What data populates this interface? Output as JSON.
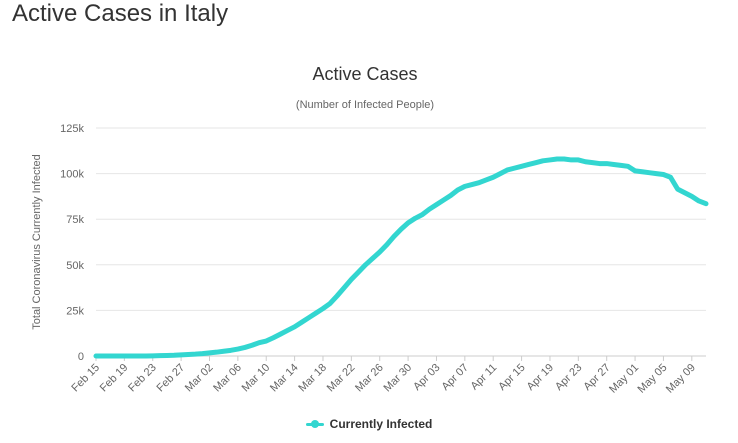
{
  "page": {
    "heading": "Active Cases in Italy"
  },
  "colors": {
    "series": "#33D6D0",
    "grid": "#E6E6E6",
    "axis_text": "#666666",
    "title": "#333333"
  },
  "legend": {
    "label": "Currently Infected",
    "placement": "bottom-center"
  },
  "chart_data": {
    "type": "line",
    "title": "Active Cases",
    "subtitle": "(Number of Infected People)",
    "xlabel": "",
    "ylabel": "Total Coronavirus Currently Infected",
    "ylim": [
      0,
      125000
    ],
    "y_ticks": [
      {
        "value": 0,
        "label": "0"
      },
      {
        "value": 25000,
        "label": "25k"
      },
      {
        "value": 50000,
        "label": "50k"
      },
      {
        "value": 75000,
        "label": "75k"
      },
      {
        "value": 100000,
        "label": "100k"
      },
      {
        "value": 125000,
        "label": "125k"
      }
    ],
    "x_tick_labels": [
      "Feb 15",
      "Feb 19",
      "Feb 23",
      "Feb 27",
      "Mar 02",
      "Mar 06",
      "Mar 10",
      "Mar 14",
      "Mar 18",
      "Mar 22",
      "Mar 26",
      "Mar 30",
      "Apr 03",
      "Apr 07",
      "Apr 11",
      "Apr 15",
      "Apr 19",
      "Apr 23",
      "Apr 27",
      "May 01",
      "May 05",
      "May 09"
    ],
    "grid": true,
    "categories": [
      "Feb 15",
      "Feb 16",
      "Feb 17",
      "Feb 18",
      "Feb 19",
      "Feb 20",
      "Feb 21",
      "Feb 22",
      "Feb 23",
      "Feb 24",
      "Feb 25",
      "Feb 26",
      "Feb 27",
      "Feb 28",
      "Feb 29",
      "Mar 01",
      "Mar 02",
      "Mar 03",
      "Mar 04",
      "Mar 05",
      "Mar 06",
      "Mar 07",
      "Mar 08",
      "Mar 09",
      "Mar 10",
      "Mar 11",
      "Mar 12",
      "Mar 13",
      "Mar 14",
      "Mar 15",
      "Mar 16",
      "Mar 17",
      "Mar 18",
      "Mar 19",
      "Mar 20",
      "Mar 21",
      "Mar 22",
      "Mar 23",
      "Mar 24",
      "Mar 25",
      "Mar 26",
      "Mar 27",
      "Mar 28",
      "Mar 29",
      "Mar 30",
      "Mar 31",
      "Apr 01",
      "Apr 02",
      "Apr 03",
      "Apr 04",
      "Apr 05",
      "Apr 06",
      "Apr 07",
      "Apr 08",
      "Apr 09",
      "Apr 10",
      "Apr 11",
      "Apr 12",
      "Apr 13",
      "Apr 14",
      "Apr 15",
      "Apr 16",
      "Apr 17",
      "Apr 18",
      "Apr 19",
      "Apr 20",
      "Apr 21",
      "Apr 22",
      "Apr 23",
      "Apr 24",
      "Apr 25",
      "Apr 26",
      "Apr 27",
      "Apr 28",
      "Apr 29",
      "Apr 30",
      "May 01",
      "May 02",
      "May 03",
      "May 04",
      "May 05",
      "May 06",
      "May 07",
      "May 08",
      "May 09",
      "May 10",
      "May 11"
    ],
    "series": [
      {
        "name": "Currently Infected",
        "values": [
          0,
          0,
          0,
          0,
          0,
          0,
          0,
          0,
          100,
          200,
          300,
          400,
          600,
          800,
          1000,
          1300,
          1700,
          2100,
          2600,
          3100,
          3800,
          4700,
          5900,
          7300,
          8200,
          10000,
          12000,
          14000,
          16000,
          18500,
          21000,
          23500,
          26000,
          28800,
          33000,
          37500,
          42000,
          46000,
          50000,
          53500,
          57000,
          61000,
          65500,
          69500,
          73000,
          75500,
          77500,
          80500,
          83000,
          85500,
          88000,
          91000,
          93000,
          94000,
          95000,
          96500,
          98000,
          100000,
          102000,
          103000,
          104000,
          105000,
          106000,
          107000,
          107500,
          108000,
          108000,
          107500,
          107500,
          106500,
          106000,
          105500,
          105500,
          105000,
          104500,
          104000,
          101500,
          101000,
          100500,
          100000,
          99500,
          98000,
          91500,
          89500,
          87500,
          85000,
          83500
        ]
      }
    ]
  }
}
